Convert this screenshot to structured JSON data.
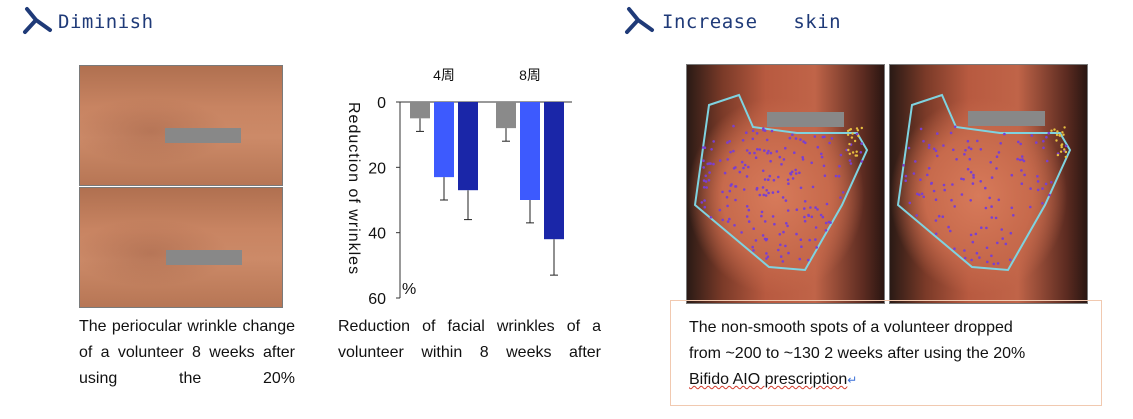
{
  "left_section": {
    "title": "Diminish",
    "logo_icon": "y-shape-logo-icon",
    "caption": "The periocular wrinkle change of a volunteer 8 weeks after using the 20%"
  },
  "chart_caption": "Reduction of facial wrinkles of a volunteer within 8 weeks after",
  "right_section": {
    "title": "Increase   skin",
    "logo_icon": "y-shape-logo-icon",
    "caption_lines": [
      "The non-smooth spots of a volunteer dropped",
      "from ~200 to ~130 2 weeks after using the 20%",
      "Bifido AIO prescription"
    ],
    "return_mark": "↵"
  },
  "colors": {
    "title_blue": "#1f3a78",
    "gray_series": "#8a8a8a",
    "light_blue_series": "#3d5afe",
    "dark_blue_series": "#1a26a8",
    "outline_cyan": "#7fd3e0",
    "spot_purple": "#7a3fd0",
    "spot_yellow": "#e8c040"
  },
  "chart_data": {
    "type": "bar",
    "categories": [
      "4周",
      "8周"
    ],
    "series": [
      {
        "values": [
          5,
          8
        ]
      },
      {
        "values": [
          23,
          30
        ]
      },
      {
        "values": [
          27,
          42
        ]
      }
    ],
    "errors": [
      {
        "values": [
          4,
          4
        ]
      },
      {
        "values": [
          7,
          7
        ]
      },
      {
        "values": [
          9,
          11
        ]
      }
    ],
    "ylabel": "Reduction of wrinkles",
    "unit_label": "%",
    "y_ticks": [
      "0",
      "20",
      "40",
      "60"
    ],
    "ylim": [
      0,
      60
    ],
    "y_inverted": true
  }
}
